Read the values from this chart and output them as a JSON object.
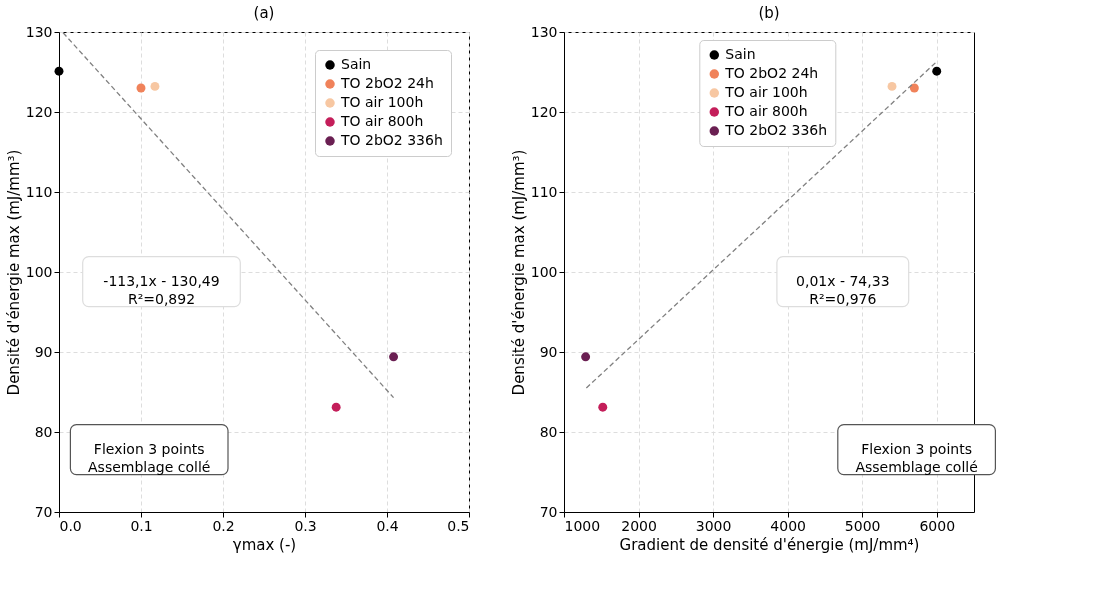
{
  "chart_data": [
    {
      "type": "scatter",
      "title": "(a)",
      "xlabel": "γmax (-)",
      "ylabel": "Densité d'énergie max (mJ/mm³)",
      "xlim": [
        0,
        0.5
      ],
      "xticks": [
        {
          "value": 0,
          "label": "0.0"
        },
        0.1,
        0.2,
        0.3,
        0.4,
        0.5
      ],
      "ylim": [
        70,
        130
      ],
      "yticks": [
        70,
        80,
        90,
        100,
        110,
        120,
        130
      ],
      "grid": true,
      "legend": "top right",
      "marker": "circle",
      "series": [
        {
          "name": "Sain",
          "color": "#000000",
          "x": [
            0.0
          ],
          "values": [
            125.1
          ]
        },
        {
          "name": "TO 2bO2 24h",
          "color": "#f0825a",
          "x": [
            0.1
          ],
          "values": [
            123.0
          ]
        },
        {
          "name": "TO air 100h",
          "color": "#f7c7a2",
          "x": [
            0.117
          ],
          "values": [
            123.2
          ]
        },
        {
          "name": "TO air 800h",
          "color": "#c41e5a",
          "x": [
            0.338
          ],
          "values": [
            83.1
          ]
        },
        {
          "name": "TO 2bO2 336h",
          "color": "#6a1f52",
          "x": [
            0.408
          ],
          "values": [
            89.4
          ]
        },
        {
          "type": "line",
          "color": "#808080",
          "line_style": "dashed",
          "marker": "none",
          "x": [
            0.005,
            0.408
          ],
          "values": [
            129.9,
            84.3
          ]
        }
      ],
      "annotations": [
        "-113,1x - 130,49\nR²=0,892",
        "Flexion 3 points\nAssemblage collé"
      ]
    },
    {
      "type": "scatter",
      "title": "(b)",
      "xlabel": "Gradient de densité d'énergie (mJ/mm⁴)",
      "ylabel": "Densité d'énergie max (mJ/mm³)",
      "xlim": [
        1000,
        6500
      ],
      "xticks": [
        1000,
        2000,
        3000,
        4000,
        5000,
        6000
      ],
      "ylim": [
        70,
        130
      ],
      "yticks": [
        70,
        80,
        90,
        100,
        110,
        120,
        130
      ],
      "grid": true,
      "legend": "top right",
      "marker": "circle",
      "series": [
        {
          "name": "Sain",
          "color": "#000000",
          "x": [
            6000
          ],
          "values": [
            125.1
          ]
        },
        {
          "name": "TO 2bO2 24h",
          "color": "#f0825a",
          "x": [
            5700
          ],
          "values": [
            123.0
          ]
        },
        {
          "name": "TO air 100h",
          "color": "#f7c7a2",
          "x": [
            5400
          ],
          "values": [
            123.2
          ]
        },
        {
          "name": "TO air 800h",
          "color": "#c41e5a",
          "x": [
            1520
          ],
          "values": [
            83.1
          ]
        },
        {
          "name": "TO 2bO2 336h",
          "color": "#6a1f52",
          "x": [
            1290
          ],
          "values": [
            89.4
          ]
        },
        {
          "type": "line",
          "color": "#808080",
          "line_style": "dashed",
          "marker": "none",
          "x": [
            1300,
            6000
          ],
          "values": [
            85.5,
            126.3
          ]
        }
      ],
      "annotations": [
        "0,01x - 74,33\nR²=0,976",
        "Flexion 3 points\nAssemblage collé"
      ]
    }
  ]
}
